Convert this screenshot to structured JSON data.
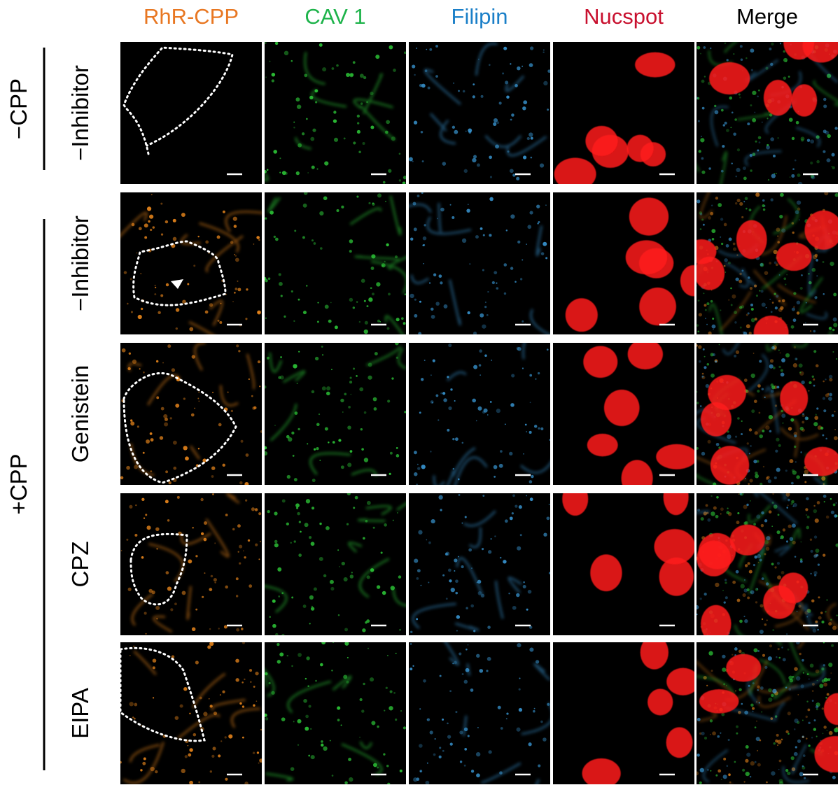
{
  "columns": [
    "RhR-CPP",
    "CAV 1",
    "Filipin",
    "Nucspot",
    "Merge"
  ],
  "groups": [
    {
      "label": "−CPP",
      "rows": [
        "−Inhibitor"
      ]
    },
    {
      "label": "+CPP",
      "rows": [
        "−Inhibitor",
        "Genistein",
        "CPZ",
        "EIPA"
      ]
    }
  ]
}
